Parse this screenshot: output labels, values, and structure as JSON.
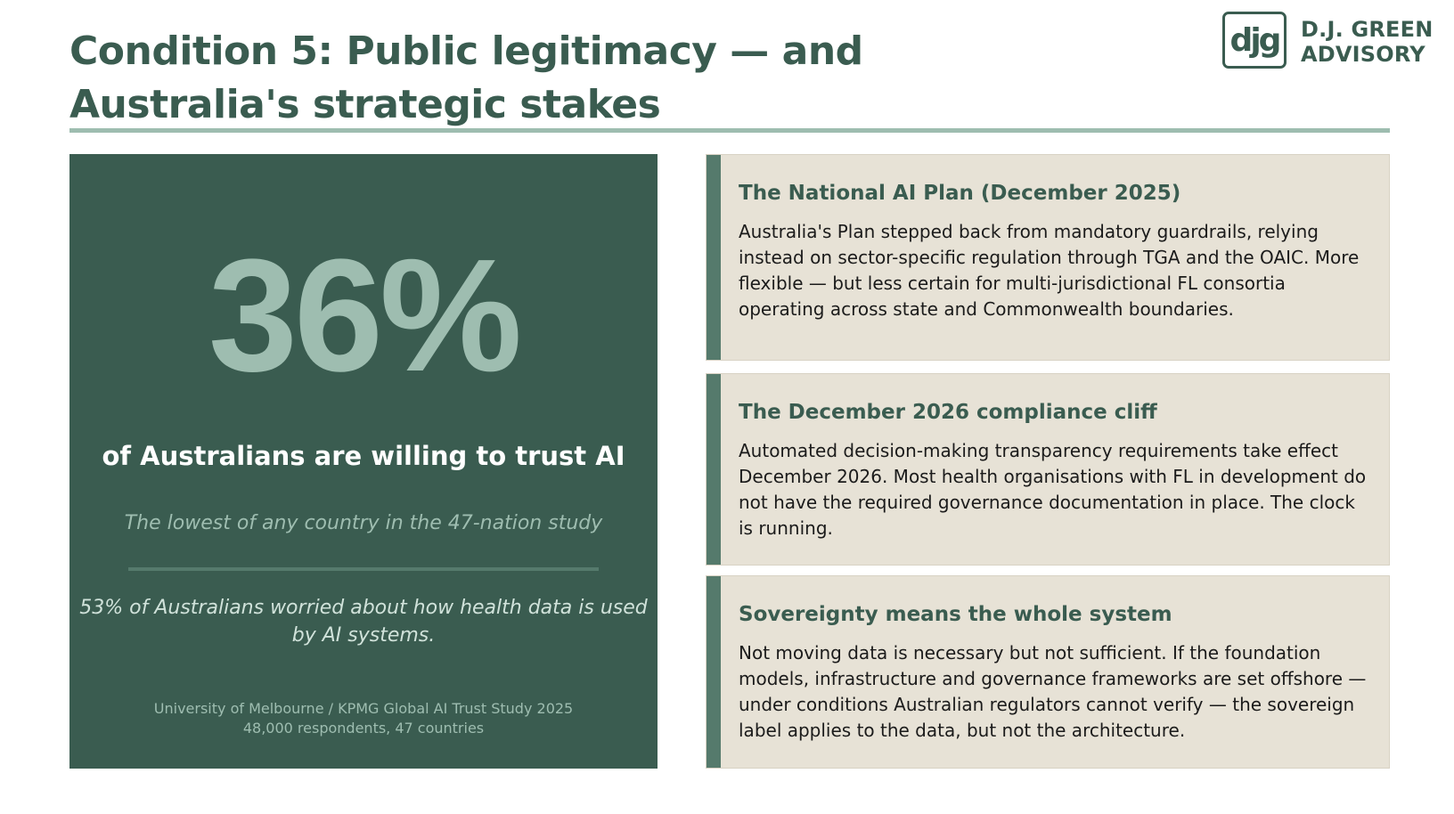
{
  "slide": {
    "title": "Condition 5: Public legitimacy — and Australia's strategic stakes"
  },
  "logo": {
    "mark": "djg",
    "line1": "D.J. GREEN",
    "line2": "ADVISORY"
  },
  "stat": {
    "value": "36%",
    "caption": "of Australians are willing to trust AI",
    "subtitle": "The lowest of any country in the 47-nation study",
    "note": "53% of Australians worried about how health data is used by AI systems.",
    "source_line1": "University of Melbourne / KPMG Global AI Trust Study 2025",
    "source_line2": "48,000 respondents, 47 countries"
  },
  "cards": [
    {
      "title": "The National AI Plan (December 2025)",
      "body": "Australia's Plan stepped back from mandatory guardrails, relying instead on sector-specific regulation through TGA and the OAIC. More flexible — but less certain for multi-jurisdictional FL consortia operating across state and Commonwealth boundaries."
    },
    {
      "title": "The December 2026 compliance cliff",
      "body": "Automated decision-making transparency requirements take effect December 2026. Most health organisations with FL in development do not have the required governance documentation in place. The clock is running."
    },
    {
      "title": "Sovereignty means the whole system",
      "body": "Not moving data is necessary but not sufficient. If the foundation models, infrastructure and governance frameworks are set offshore — under conditions Australian regulators cannot verify — the sovereign label applies to the data, but not the architecture."
    }
  ],
  "colors": {
    "primary_green": "#3a5c50",
    "light_green": "#9ebdb0",
    "card_background": "#e7e2d6",
    "accent_bar": "#557a6c"
  }
}
